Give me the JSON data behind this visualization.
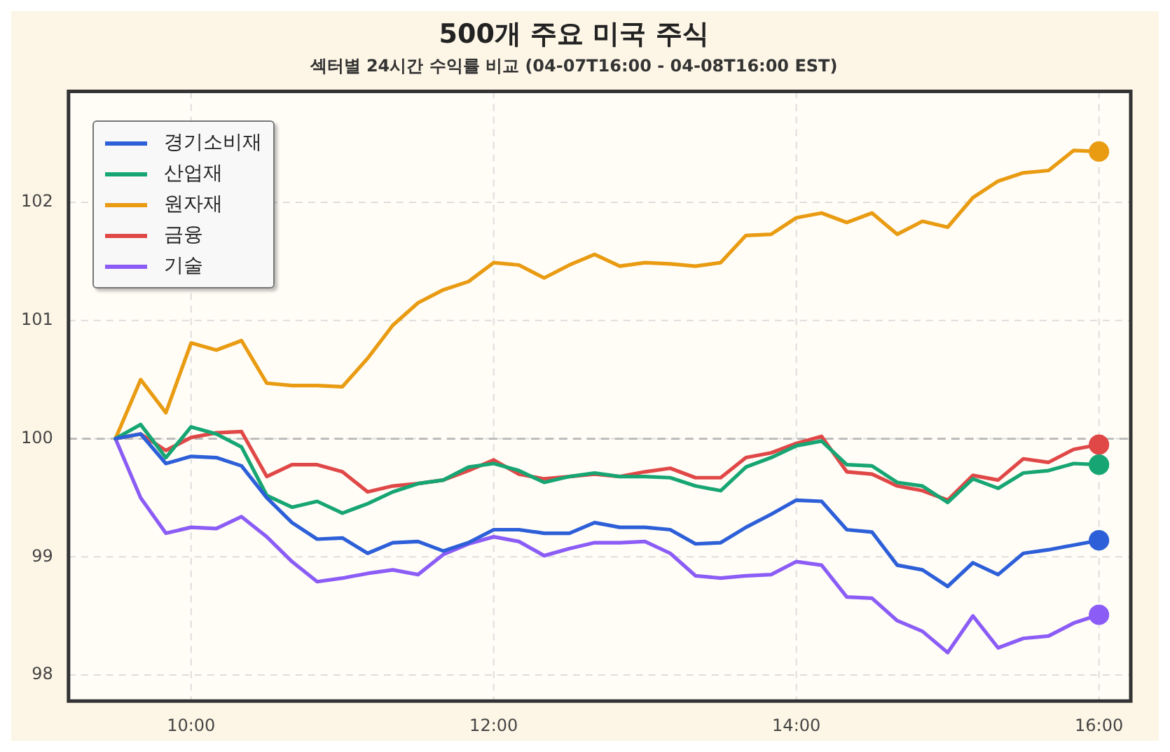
{
  "chart_data": {
    "type": "line",
    "title": "500개 주요 미국 주식",
    "subtitle": "섹터별 24시간 수익률 비교 (04-07T16:00 - 04-08T16:00 EST)",
    "x": [
      9.5,
      9.6667,
      9.8333,
      10,
      10.1667,
      10.3333,
      10.5,
      10.6667,
      10.8333,
      11,
      11.1667,
      11.3333,
      11.5,
      11.6667,
      11.8333,
      12,
      12.1667,
      12.3333,
      12.5,
      12.6667,
      12.8333,
      13,
      13.1667,
      13.3333,
      13.5,
      13.6667,
      13.8333,
      14,
      14.1667,
      14.3333,
      14.5,
      14.6667,
      14.8333,
      15,
      15.1667,
      15.3333,
      15.5,
      15.6667,
      15.8333,
      16
    ],
    "series": [
      {
        "name": "경기소비재",
        "color": "#2d5fd8",
        "values": [
          100,
          100.04,
          99.79,
          99.85,
          99.84,
          99.77,
          99.5,
          99.29,
          99.15,
          99.16,
          99.03,
          99.12,
          99.13,
          99.05,
          99.12,
          99.23,
          99.23,
          99.2,
          99.2,
          99.29,
          99.25,
          99.25,
          99.23,
          99.11,
          99.12,
          99.25,
          99.36,
          99.48,
          99.47,
          99.23,
          99.21,
          98.93,
          98.89,
          98.75,
          98.95,
          98.85,
          99.03,
          99.06,
          99.1,
          99.14
        ]
      },
      {
        "name": "산업재",
        "color": "#17a673",
        "values": [
          100,
          100.12,
          99.84,
          100.1,
          100.04,
          99.93,
          99.52,
          99.42,
          99.47,
          99.37,
          99.45,
          99.55,
          99.62,
          99.65,
          99.76,
          99.79,
          99.73,
          99.63,
          99.68,
          99.71,
          99.68,
          99.68,
          99.67,
          99.6,
          99.56,
          99.76,
          99.84,
          99.94,
          99.98,
          99.78,
          99.77,
          99.63,
          99.6,
          99.46,
          99.66,
          99.58,
          99.71,
          99.73,
          99.79,
          99.78
        ]
      },
      {
        "name": "원자재",
        "color": "#e99b12",
        "values": [
          100,
          100.5,
          100.22,
          100.81,
          100.75,
          100.83,
          100.47,
          100.45,
          100.45,
          100.44,
          100.68,
          100.96,
          101.15,
          101.26,
          101.33,
          101.49,
          101.47,
          101.36,
          101.47,
          101.56,
          101.46,
          101.49,
          101.48,
          101.46,
          101.49,
          101.72,
          101.73,
          101.87,
          101.91,
          101.83,
          101.91,
          101.73,
          101.84,
          101.79,
          102.04,
          102.18,
          102.25,
          102.27,
          102.44,
          102.43
        ]
      },
      {
        "name": "금융",
        "color": "#e04848",
        "values": [
          100,
          100.04,
          99.9,
          100.01,
          100.05,
          100.06,
          99.68,
          99.78,
          99.78,
          99.72,
          99.55,
          99.6,
          99.62,
          99.65,
          99.73,
          99.82,
          99.7,
          99.66,
          99.68,
          99.7,
          99.68,
          99.72,
          99.75,
          99.67,
          99.67,
          99.84,
          99.88,
          99.96,
          100.02,
          99.72,
          99.7,
          99.6,
          99.56,
          99.48,
          99.69,
          99.65,
          99.83,
          99.8,
          99.91,
          99.95
        ]
      },
      {
        "name": "기술",
        "color": "#8b5cf6",
        "values": [
          100,
          99.5,
          99.2,
          99.25,
          99.24,
          99.34,
          99.17,
          98.96,
          98.79,
          98.82,
          98.86,
          98.89,
          98.85,
          99.02,
          99.11,
          99.17,
          99.13,
          99.01,
          99.07,
          99.12,
          99.12,
          99.13,
          99.03,
          98.84,
          98.82,
          98.84,
          98.85,
          98.96,
          98.93,
          98.66,
          98.65,
          98.46,
          98.37,
          98.19,
          98.5,
          98.23,
          98.31,
          98.33,
          98.44,
          98.51
        ]
      }
    ],
    "xlim": [
      9.19,
      16.21
    ],
    "xticks": [
      {
        "value": 10,
        "label": "10:00"
      },
      {
        "value": 12,
        "label": "12:00"
      },
      {
        "value": 14,
        "label": "14:00"
      },
      {
        "value": 16,
        "label": "16:00"
      }
    ],
    "ylim": [
      97.78,
      102.94
    ],
    "yticks": [
      98,
      99,
      100,
      101,
      102
    ],
    "ref_lines": [
      {
        "axis": "y",
        "value": 100,
        "color": "#b8b8b8",
        "line_style": "dashed"
      }
    ],
    "grid": true,
    "legend": "top left",
    "line_style": "solid"
  }
}
